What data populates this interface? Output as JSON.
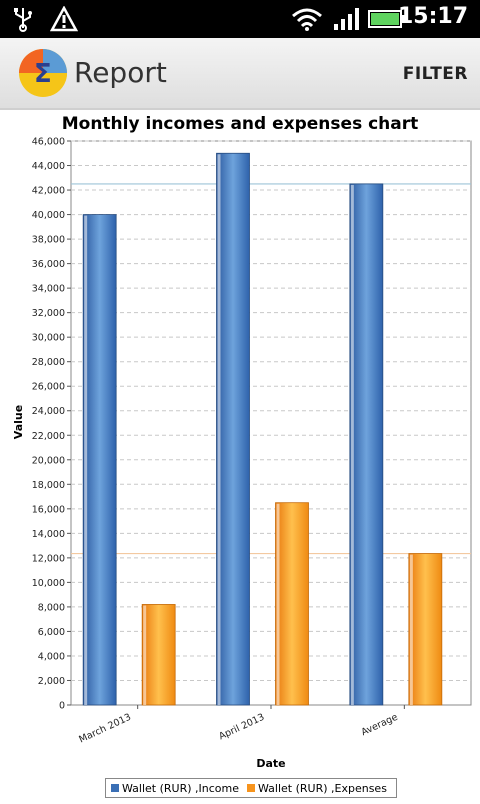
{
  "status_bar": {
    "time": "15:17",
    "icons": [
      "usb-icon",
      "warning-icon",
      "wifi-icon",
      "signal-icon",
      "battery-icon"
    ]
  },
  "action_bar": {
    "title": "Report",
    "filter_label": "FILTER",
    "logo_icon": "sigma-pie-logo-icon"
  },
  "chart_data": {
    "type": "bar",
    "title": "Monthly incomes and expenses chart",
    "xlabel": "Date",
    "ylabel": "Value",
    "categories": [
      "March 2013",
      "April 2013",
      "Average"
    ],
    "series": [
      {
        "name": "Wallet (RUR) ,Income",
        "values": [
          40000,
          45000,
          42500
        ],
        "color": "#3a6fb5"
      },
      {
        "name": "Wallet (RUR) ,Expenses",
        "values": [
          8200,
          16500,
          12350
        ],
        "color": "#f7941d"
      }
    ],
    "ylim": [
      0,
      46000
    ],
    "yticks": [
      "0",
      "2,000",
      "4,000",
      "6,000",
      "8,000",
      "10,000",
      "12,000",
      "14,000",
      "16,000",
      "18,000",
      "20,000",
      "22,000",
      "24,000",
      "26,000",
      "28,000",
      "30,000",
      "32,000",
      "34,000",
      "36,000",
      "38,000",
      "40,000",
      "42,000",
      "44,000",
      "46,000"
    ],
    "average_lines": [
      {
        "value": 42500,
        "color": "#9ec4d8"
      },
      {
        "value": 12350,
        "color": "#f3c9a0"
      }
    ],
    "grid": true,
    "legend_position": "bottom"
  }
}
